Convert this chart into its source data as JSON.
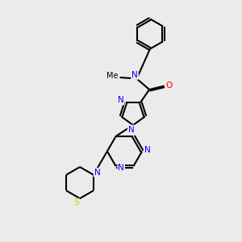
{
  "bg_color": "#ebebeb",
  "bond_color": "#000000",
  "N_color": "#0000ff",
  "O_color": "#ff0000",
  "S_color": "#cccc00",
  "line_width": 1.5,
  "figsize": [
    3.0,
    3.0
  ],
  "dpi": 100,
  "xlim": [
    0,
    10
  ],
  "ylim": [
    0,
    10
  ]
}
